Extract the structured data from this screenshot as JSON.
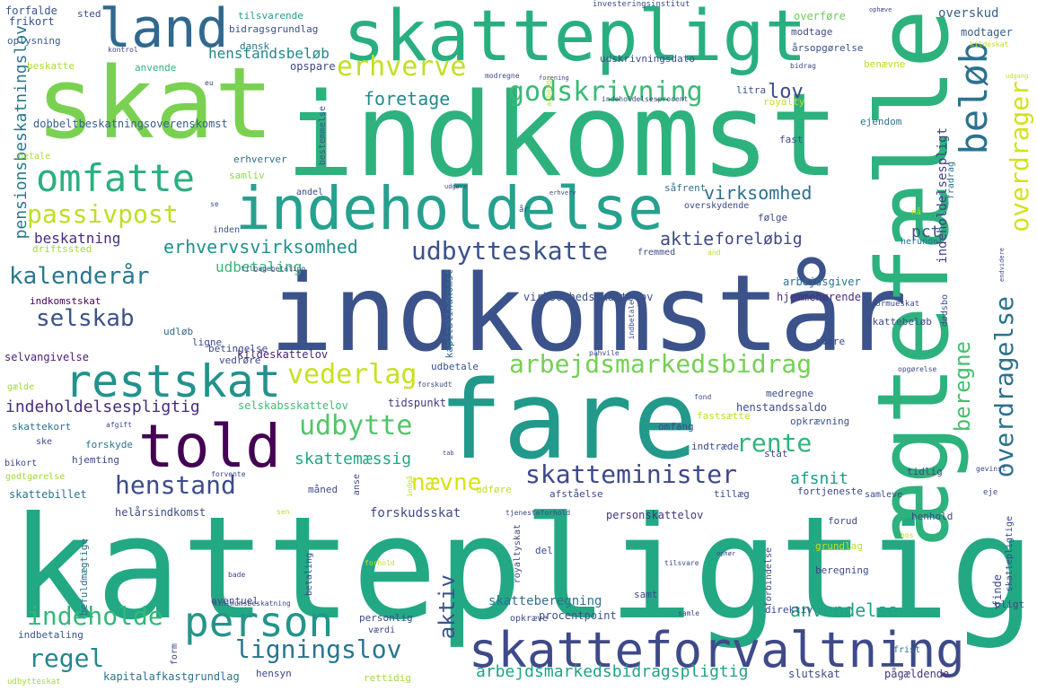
{
  "palette": [
    "#440154",
    "#3b528b",
    "#21918c",
    "#2db27d",
    "#5ec962",
    "#a6d93a",
    "#fde725"
  ],
  "words": [
    {
      "text": "skattepligtig",
      "color": "#23a884"
    },
    {
      "text": "indkomst",
      "color": "#2db27d"
    },
    {
      "text": "indkomstår",
      "color": "#3b528b"
    },
    {
      "text": "fare",
      "color": "#22998a"
    },
    {
      "text": "ægtefælle",
      "color": "#2db27d"
    },
    {
      "text": "skat",
      "color": "#7ad151"
    },
    {
      "text": "skattepligt",
      "color": "#29af7f"
    },
    {
      "text": "indeholdelse",
      "color": "#25a18e"
    },
    {
      "text": "told",
      "color": "#440154"
    },
    {
      "text": "land",
      "color": "#31688e"
    },
    {
      "text": "skatteforvaltning",
      "color": "#3e4a89"
    },
    {
      "text": "restskat",
      "color": "#22928c"
    },
    {
      "text": "person",
      "color": "#25958b"
    },
    {
      "text": "omfatte",
      "color": "#2ab07f"
    },
    {
      "text": "beløb",
      "color": "#2c728e"
    },
    {
      "text": "erhverve",
      "color": "#c2df23"
    },
    {
      "text": "godskrivning",
      "color": "#3aba76"
    },
    {
      "text": "passivpost",
      "color": "#bddf26"
    },
    {
      "text": "udbytteskatte",
      "color": "#3b528b"
    },
    {
      "text": "kalenderår",
      "color": "#29788e"
    },
    {
      "text": "selskab",
      "color": "#3b528b"
    },
    {
      "text": "vederlag",
      "color": "#c8e020"
    },
    {
      "text": "arbejdsmarkedsbidrag",
      "color": "#75d054"
    },
    {
      "text": "udbytte",
      "color": "#52c569"
    },
    {
      "text": "skatteminister",
      "color": "#3e4989"
    },
    {
      "text": "henstand",
      "color": "#3e4c8a"
    },
    {
      "text": "indeholde",
      "color": "#35b779"
    },
    {
      "text": "regel",
      "color": "#24868e"
    },
    {
      "text": "ligningslov",
      "color": "#2a768e"
    },
    {
      "text": "rente",
      "color": "#2fb47c"
    },
    {
      "text": "nævne",
      "color": "#d8e219"
    },
    {
      "text": "overdrager",
      "color": "#d2e21b"
    },
    {
      "text": "overdragelse",
      "color": "#2d718e"
    },
    {
      "text": "beregne",
      "color": "#46c06f"
    },
    {
      "text": "aktiv",
      "color": "#3b528b"
    },
    {
      "text": "lov",
      "color": "#3e4a89"
    },
    {
      "text": "foretage",
      "color": "#23898e"
    },
    {
      "text": "virksomhed",
      "color": "#2d708e"
    },
    {
      "text": "erhvervsvirksomhed",
      "color": "#21918c"
    },
    {
      "text": "udbetaling",
      "color": "#35b779"
    },
    {
      "text": "aktie",
      "color": "#3e4a89"
    },
    {
      "text": "foreløbig",
      "color": "#414487"
    },
    {
      "text": "pct",
      "color": "#3b528b"
    },
    {
      "text": "beskatning",
      "color": "#472d7b"
    },
    {
      "text": "skattemæssig",
      "color": "#22a884"
    },
    {
      "text": "afsnit",
      "color": "#1f9e89"
    },
    {
      "text": "anvendelse",
      "color": "#20a386"
    },
    {
      "text": "arbejdsmarkedsbidragspligtig",
      "color": "#20a486"
    },
    {
      "text": "indeholdelsespligtig",
      "color": "#472c7a"
    },
    {
      "text": "pensionsbeskatningslov",
      "color": "#29788e"
    },
    {
      "text": "dobbeltbeskatningsoverenskomst",
      "color": "#355f8d"
    },
    {
      "text": "udskrivningsdato",
      "color": "#3b528b"
    },
    {
      "text": "henstandsbeløb",
      "color": "#24878e"
    },
    {
      "text": "opspare",
      "color": "#3f4788"
    },
    {
      "text": "indeholdelsespligt",
      "color": "#433e85"
    },
    {
      "text": "overskud",
      "color": "#355f8d"
    },
    {
      "text": "modtager",
      "color": "#355e8d"
    },
    {
      "text": "selvangivelse",
      "color": "#482173"
    },
    {
      "text": "kildeskattelov",
      "color": "#482374"
    },
    {
      "text": "selskabsskattelov",
      "color": "#3dbc74"
    },
    {
      "text": "tidspunkt",
      "color": "#453781"
    },
    {
      "text": "henstandssaldo",
      "color": "#3e4c8a"
    },
    {
      "text": "helårsindkomst",
      "color": "#3e4989"
    },
    {
      "text": "forskudsskat",
      "color": "#3e4989"
    },
    {
      "text": "personskattelov",
      "color": "#46337e"
    },
    {
      "text": "skattebillet",
      "color": "#2c728e"
    },
    {
      "text": "skatteberegning",
      "color": "#2c728e"
    },
    {
      "text": "kapitalafkastgrundlag",
      "color": "#2c738e"
    },
    {
      "text": "arbejdsgiver",
      "color": "#2d708e"
    },
    {
      "text": "slutskat",
      "color": "#3e4a89"
    },
    {
      "text": "pågældende",
      "color": "#46337e"
    },
    {
      "text": "royaltyskat",
      "color": "#3e4a89"
    },
    {
      "text": "procentpoint",
      "color": "#3b528b"
    },
    {
      "text": "opkræve",
      "color": "#3e4989"
    },
    {
      "text": "hjemmehørende",
      "color": "#472d7b"
    },
    {
      "text": "virksomhedsskattelov",
      "color": "#3b528b"
    },
    {
      "text": "indkomstskat",
      "color": "#440154"
    },
    {
      "text": "udløb",
      "color": "#31688e"
    },
    {
      "text": "betingelse",
      "color": "#3e4a89"
    },
    {
      "text": "udbetale",
      "color": "#3b528b"
    },
    {
      "text": "skattekort",
      "color": "#2c728e"
    },
    {
      "text": "godtgørelse",
      "color": "#a0da39"
    },
    {
      "text": "befuldmægtige",
      "color": "#2c738e"
    },
    {
      "text": "indbetaling",
      "color": "#3b528b"
    },
    {
      "text": "forfalde",
      "color": "#3b528b"
    },
    {
      "text": "frikort",
      "color": "#3b528b"
    },
    {
      "text": "oplysning",
      "color": "#355f8d"
    },
    {
      "text": "sted",
      "color": "#3e4989"
    },
    {
      "text": "tilsvarende",
      "color": "#1f9e89"
    },
    {
      "text": "investeringsinstitut",
      "color": "#3e4a89"
    },
    {
      "text": "bidragsgrundlag",
      "color": "#3b528b"
    },
    {
      "text": "dansk",
      "color": "#2c728e"
    },
    {
      "text": "beskatte",
      "color": "#aadc32"
    },
    {
      "text": "anvende",
      "color": "#2fb47c"
    },
    {
      "text": "overføre",
      "color": "#6ccd5a"
    },
    {
      "text": "modtage",
      "color": "#3e4a89"
    },
    {
      "text": "årsopgørelse",
      "color": "#3b528b"
    },
    {
      "text": "benævne",
      "color": "#bddf26"
    },
    {
      "text": "litra",
      "color": "#3b528b"
    },
    {
      "text": "royalty",
      "color": "#c2df23"
    },
    {
      "text": "ejendom",
      "color": "#2c728e"
    },
    {
      "text": "fast",
      "color": "#3e4989"
    },
    {
      "text": "bestemmelse",
      "color": "#3b528b"
    },
    {
      "text": "erhverver",
      "color": "#2c728e"
    },
    {
      "text": "betale",
      "color": "#a8db34"
    },
    {
      "text": "samliv",
      "color": "#8fd744"
    },
    {
      "text": "andel",
      "color": "#3e4a89"
    },
    {
      "text": "såfrent",
      "color": "#2c728e"
    },
    {
      "text": "overskydende",
      "color": "#3e4989"
    },
    {
      "text": "følge",
      "color": "#3e4989"
    },
    {
      "text": "inden",
      "color": "#3b528b"
    },
    {
      "text": "driftssted",
      "color": "#a0da39"
    },
    {
      "text": "fremmed",
      "color": "#3e4a89"
    },
    {
      "text": "herunder",
      "color": "#2c728e"
    },
    {
      "text": "fradrag",
      "color": "#2c728e"
    },
    {
      "text": "formueskat",
      "color": "#3e4989"
    },
    {
      "text": "dødsbo",
      "color": "#3b528b"
    },
    {
      "text": "skattebeløb",
      "color": "#3e4989"
    },
    {
      "text": "svare",
      "color": "#3e4989"
    },
    {
      "text": "ligne",
      "color": "#3e4989"
    },
    {
      "text": "vedrøre",
      "color": "#3e4989"
    },
    {
      "text": "kapitalindkomst",
      "color": "#2c728e"
    },
    {
      "text": "gælde",
      "color": "#a0da39"
    },
    {
      "text": "forskyde",
      "color": "#2c728e"
    },
    {
      "text": "hjemting",
      "color": "#3e4989"
    },
    {
      "text": "ske",
      "color": "#3e4989"
    },
    {
      "text": "bikort",
      "color": "#3e4989"
    },
    {
      "text": "medregne",
      "color": "#3e4a89"
    },
    {
      "text": "fastsætte",
      "color": "#bddf26"
    },
    {
      "text": "opkrævning",
      "color": "#3b528b"
    },
    {
      "text": "omfang",
      "color": "#3e4989"
    },
    {
      "text": "indtræde",
      "color": "#3e4989"
    },
    {
      "text": "stat",
      "color": "#3e4989"
    },
    {
      "text": "tidlig",
      "color": "#3e4989"
    },
    {
      "text": "tillæg",
      "color": "#3e4989"
    },
    {
      "text": "fortjeneste",
      "color": "#3e4989"
    },
    {
      "text": "samleve",
      "color": "#3e4989"
    },
    {
      "text": "forud",
      "color": "#3e4989"
    },
    {
      "text": "henhold",
      "color": "#3e4989"
    },
    {
      "text": "afståelse",
      "color": "#3e4989"
    },
    {
      "text": "måned",
      "color": "#3e4989"
    },
    {
      "text": "udføre",
      "color": "#bddf26"
    },
    {
      "text": "anse",
      "color": "#3e4989"
    },
    {
      "text": "grundlag",
      "color": "#bddf26"
    },
    {
      "text": "del",
      "color": "#3e4989"
    },
    {
      "text": "beregning",
      "color": "#3e4989"
    },
    {
      "text": "finde",
      "color": "#3e4989"
    },
    {
      "text": "pligt",
      "color": "#3e4989"
    },
    {
      "text": "forbindelse",
      "color": "#3e4989"
    },
    {
      "text": "direktiv",
      "color": "#3e4989"
    },
    {
      "text": "samt",
      "color": "#3e4989"
    },
    {
      "text": "eventuel",
      "color": "#3e4989"
    },
    {
      "text": "betaling",
      "color": "#3e4989"
    },
    {
      "text": "personlig",
      "color": "#3e4989"
    },
    {
      "text": "værdi",
      "color": "#3e4989"
    },
    {
      "text": "form",
      "color": "#3e4989"
    },
    {
      "text": "hensyn",
      "color": "#3e4989"
    },
    {
      "text": "rettidig",
      "color": "#a0da39"
    },
    {
      "text": "frist",
      "color": "#2c728e"
    },
    {
      "text": "skattepligtige",
      "color": "#3e4989"
    },
    {
      "text": "udbytteskat",
      "color": "#a0da39"
    },
    {
      "text": "minimumsbeskatning",
      "color": "#3e4989"
    },
    {
      "text": "eje",
      "color": "#3e4989"
    },
    {
      "text": "gevinst",
      "color": "#3e4989"
    },
    {
      "text": "hos",
      "color": "#bddf26"
    },
    {
      "text": "tjenesteforhold",
      "color": "#3e4989"
    },
    {
      "text": "forhold",
      "color": "#bddf26"
    },
    {
      "text": "tilsvare",
      "color": "#3e4989"
    },
    {
      "text": "bade",
      "color": "#3e4989"
    },
    {
      "text": "sen",
      "color": "#bddf26"
    },
    {
      "text": "forvente",
      "color": "#3e4989"
    },
    {
      "text": "indgå",
      "color": "#bddf26"
    },
    {
      "text": "opgørelse",
      "color": "#3e4989"
    },
    {
      "text": "påhvile",
      "color": "#3e4989"
    },
    {
      "text": "indbetale",
      "color": "#3e4989"
    },
    {
      "text": "forskudt",
      "color": "#3e4989"
    },
    {
      "text": "fond",
      "color": "#3e4989"
    },
    {
      "text": "afgift",
      "color": "#3e4989"
    },
    {
      "text": "tilbagebetaling",
      "color": "#3e4989"
    },
    {
      "text": "udgøre",
      "color": "#3e4989"
    },
    {
      "text": "erhverv",
      "color": "#3e4989"
    },
    {
      "text": "nå",
      "color": "#bddf26"
    },
    {
      "text": "år",
      "color": "#3e4989"
    },
    {
      "text": "and",
      "color": "#bddf26"
    },
    {
      "text": "arbejde",
      "color": "#bddf26"
    },
    {
      "text": "forening",
      "color": "#3e4989"
    },
    {
      "text": "modregne",
      "color": "#3e4989"
    },
    {
      "text": "indeholdelsesprocent",
      "color": "#3e4989"
    },
    {
      "text": "eu",
      "color": "#3e4989"
    },
    {
      "text": "kontrol",
      "color": "#3e4989"
    },
    {
      "text": "ophæve",
      "color": "#3e4989"
    },
    {
      "text": "kildeskat",
      "color": "#bddf26"
    },
    {
      "text": "bidrag",
      "color": "#3e4989"
    },
    {
      "text": "udgang",
      "color": "#bddf26"
    },
    {
      "text": "endvidere",
      "color": "#3e4989"
    },
    {
      "text": "ophør",
      "color": "#3e4989"
    },
    {
      "text": "samle",
      "color": "#3e4989"
    },
    {
      "text": "tab",
      "color": "#3e4989"
    },
    {
      "text": "se",
      "color": "#3e4989"
    }
  ]
}
